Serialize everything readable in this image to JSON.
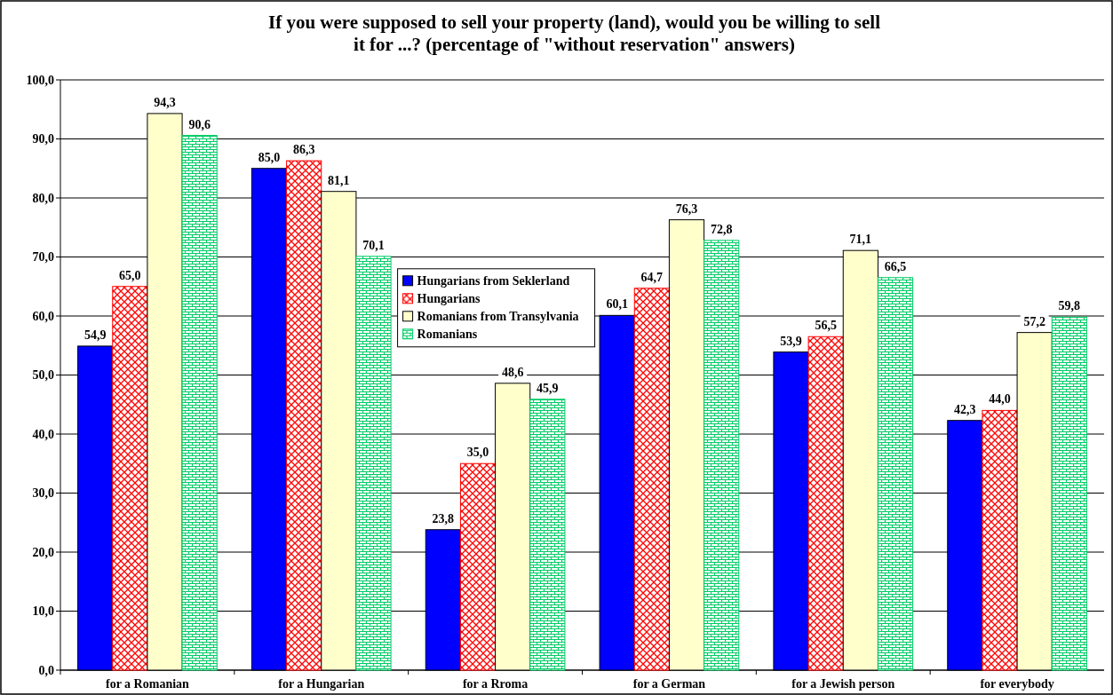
{
  "chart_data": {
    "type": "bar",
    "title": "If you were supposed to sell your property (land), would you be willing to sell\nit for ...? (percentage of \"without reservation\" answers)",
    "categories": [
      "for a Romanian",
      "for a Hungarian",
      "for a Rroma",
      "for a German",
      "for a Jewish person",
      "for everybody"
    ],
    "series": [
      {
        "name": "Hungarians from Seklerland",
        "color": "#0000ff",
        "values": [
          54.9,
          85.0,
          23.8,
          60.1,
          53.9,
          42.3
        ],
        "value_labels": [
          "54,9",
          "85,0",
          "23,8",
          "60,1",
          "53,9",
          "42,3"
        ]
      },
      {
        "name": "Hungarians",
        "color": "#ff0000",
        "values": [
          65.0,
          86.3,
          35.0,
          64.7,
          56.5,
          44.0
        ],
        "value_labels": [
          "65,0",
          "86,3",
          "35,0",
          "64,7",
          "56,5",
          "44,0"
        ]
      },
      {
        "name": "Romanians from Transylvania",
        "color": "#ffffcc",
        "values": [
          94.3,
          81.1,
          48.6,
          76.3,
          71.1,
          57.2
        ],
        "value_labels": [
          "94,3",
          "81,1",
          "48,6",
          "76,3",
          "71,1",
          "57,2"
        ]
      },
      {
        "name": "Romanians",
        "color": "#00cc66",
        "values": [
          90.6,
          70.1,
          45.9,
          72.8,
          66.5,
          59.8
        ],
        "value_labels": [
          "90,6",
          "70,1",
          "45,9",
          "72,8",
          "66,5",
          "59,8"
        ]
      }
    ],
    "ylim": [
      0,
      100
    ],
    "yticks": [
      {
        "value": 0,
        "label": "0,0"
      },
      {
        "value": 10,
        "label": "10,0"
      },
      {
        "value": 20,
        "label": "20,0"
      },
      {
        "value": 30,
        "label": "30,0"
      },
      {
        "value": 40,
        "label": "40,0"
      },
      {
        "value": 50,
        "label": "50,0"
      },
      {
        "value": 60,
        "label": "60,0"
      },
      {
        "value": 70,
        "label": "70,0"
      },
      {
        "value": 80,
        "label": "80,0"
      },
      {
        "value": 90,
        "label": "90,0"
      },
      {
        "value": 100,
        "label": "100,0"
      }
    ],
    "grid": "y",
    "legend": "top"
  }
}
